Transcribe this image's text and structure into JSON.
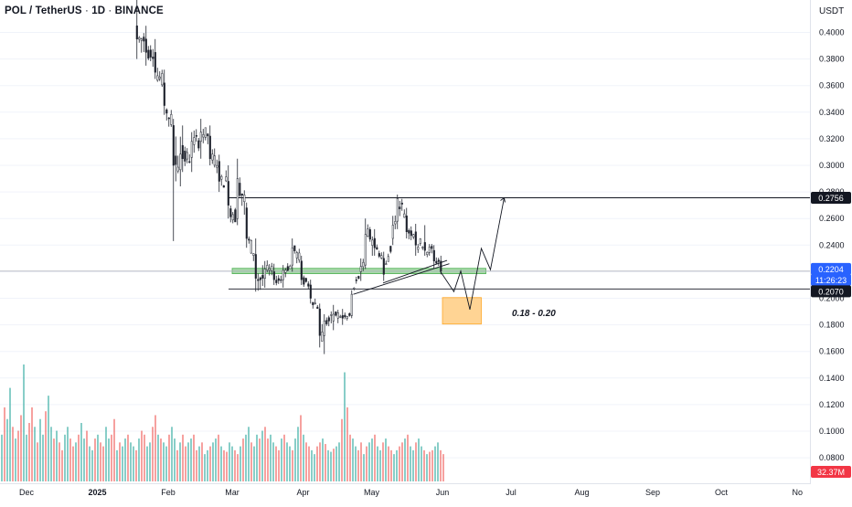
{
  "header": {
    "symbol": "POL / TetherUS",
    "interval": "1D",
    "exchange": "BINANCE",
    "separator": " · "
  },
  "axis": {
    "unit": "USDT",
    "price_ticks": [
      "0.4000",
      "0.3800",
      "0.3600",
      "0.3400",
      "0.3200",
      "0.3000",
      "0.2800",
      "0.2600",
      "0.2400",
      "0.2200",
      "0.2000",
      "0.1800",
      "0.1600",
      "0.1400",
      "0.1200",
      "0.1000",
      "0.0800"
    ],
    "date_ticks": [
      {
        "label": "Dec",
        "bold": false
      },
      {
        "label": "2025",
        "bold": true
      },
      {
        "label": "Feb",
        "bold": false
      },
      {
        "label": "Mar",
        "bold": false
      },
      {
        "label": "Apr",
        "bold": false
      },
      {
        "label": "May",
        "bold": false
      },
      {
        "label": "Jun",
        "bold": false
      },
      {
        "label": "Jul",
        "bold": false
      },
      {
        "label": "Aug",
        "bold": false
      },
      {
        "label": "Sep",
        "bold": false
      },
      {
        "label": "Oct",
        "bold": false
      },
      {
        "label": "No",
        "bold": false
      }
    ]
  },
  "badges": {
    "resistance": {
      "label": "0.2756",
      "bg": "#131722",
      "fg": "#ffffff"
    },
    "current_price": {
      "label": "0.2204",
      "bg": "#2962ff",
      "fg": "#ffffff"
    },
    "countdown": {
      "label": "11:26:23",
      "bg": "#2962ff",
      "fg": "#ffffff"
    },
    "support": {
      "label": "0.2070",
      "bg": "#131722",
      "fg": "#ffffff"
    },
    "volume": {
      "label": "32.37M",
      "bg": "#f23645",
      "fg": "#ffffff"
    }
  },
  "annotation": {
    "target_zone_label": "0.18 - 0.20"
  },
  "colors": {
    "up": "#26a69a",
    "down": "#ef5350",
    "candle_body": "#1e222d",
    "zone_green": "#81c784",
    "zone_orange": "#ffb74d",
    "grid": "#f0f3fa"
  },
  "chart_data": {
    "type": "candlestick",
    "title": "POL / TetherUS · 1D · BINANCE",
    "y_unit": "USDT",
    "ylim": [
      0.072,
      0.412
    ],
    "x_range": [
      "2024-11-20",
      "2025-11-02"
    ],
    "grid": true,
    "ohlc_sample": [
      {
        "date": "2025-01-18",
        "o": 0.405,
        "h": 0.43,
        "l": 0.38,
        "c": 0.395
      },
      {
        "date": "2025-01-22",
        "o": 0.395,
        "h": 0.405,
        "l": 0.375,
        "c": 0.385
      },
      {
        "date": "2025-01-26",
        "o": 0.385,
        "h": 0.395,
        "l": 0.365,
        "c": 0.37
      },
      {
        "date": "2025-01-30",
        "o": 0.362,
        "h": 0.372,
        "l": 0.338,
        "c": 0.345
      },
      {
        "date": "2025-02-03",
        "o": 0.33,
        "h": 0.335,
        "l": 0.243,
        "c": 0.3
      },
      {
        "date": "2025-02-07",
        "o": 0.315,
        "h": 0.33,
        "l": 0.295,
        "c": 0.305
      },
      {
        "date": "2025-02-11",
        "o": 0.306,
        "h": 0.325,
        "l": 0.295,
        "c": 0.318
      },
      {
        "date": "2025-02-15",
        "o": 0.318,
        "h": 0.335,
        "l": 0.305,
        "c": 0.325
      },
      {
        "date": "2025-02-19",
        "o": 0.322,
        "h": 0.33,
        "l": 0.3,
        "c": 0.305
      },
      {
        "date": "2025-02-23",
        "o": 0.303,
        "h": 0.308,
        "l": 0.28,
        "c": 0.288
      },
      {
        "date": "2025-02-27",
        "o": 0.288,
        "h": 0.3,
        "l": 0.26,
        "c": 0.27
      },
      {
        "date": "2025-03-03",
        "o": 0.26,
        "h": 0.305,
        "l": 0.255,
        "c": 0.29
      },
      {
        "date": "2025-03-07",
        "o": 0.268,
        "h": 0.272,
        "l": 0.238,
        "c": 0.245
      },
      {
        "date": "2025-03-11",
        "o": 0.233,
        "h": 0.245,
        "l": 0.205,
        "c": 0.215
      },
      {
        "date": "2025-03-15",
        "o": 0.215,
        "h": 0.228,
        "l": 0.208,
        "c": 0.222
      },
      {
        "date": "2025-03-19",
        "o": 0.22,
        "h": 0.226,
        "l": 0.21,
        "c": 0.214
      },
      {
        "date": "2025-03-23",
        "o": 0.214,
        "h": 0.225,
        "l": 0.208,
        "c": 0.221
      },
      {
        "date": "2025-03-27",
        "o": 0.225,
        "h": 0.245,
        "l": 0.22,
        "c": 0.238
      },
      {
        "date": "2025-03-31",
        "o": 0.228,
        "h": 0.232,
        "l": 0.21,
        "c": 0.214
      },
      {
        "date": "2025-04-04",
        "o": 0.21,
        "h": 0.214,
        "l": 0.196,
        "c": 0.2
      },
      {
        "date": "2025-04-08",
        "o": 0.192,
        "h": 0.196,
        "l": 0.163,
        "c": 0.172
      },
      {
        "date": "2025-04-10",
        "o": 0.172,
        "h": 0.188,
        "l": 0.158,
        "c": 0.183
      },
      {
        "date": "2025-04-14",
        "o": 0.183,
        "h": 0.195,
        "l": 0.176,
        "c": 0.188
      },
      {
        "date": "2025-04-18",
        "o": 0.187,
        "h": 0.192,
        "l": 0.18,
        "c": 0.185
      },
      {
        "date": "2025-04-22",
        "o": 0.187,
        "h": 0.206,
        "l": 0.185,
        "c": 0.203
      },
      {
        "date": "2025-04-26",
        "o": 0.22,
        "h": 0.23,
        "l": 0.213,
        "c": 0.224
      },
      {
        "date": "2025-04-28",
        "o": 0.225,
        "h": 0.26,
        "l": 0.222,
        "c": 0.248
      },
      {
        "date": "2025-05-02",
        "o": 0.245,
        "h": 0.252,
        "l": 0.232,
        "c": 0.238
      },
      {
        "date": "2025-05-06",
        "o": 0.23,
        "h": 0.235,
        "l": 0.213,
        "c": 0.218
      },
      {
        "date": "2025-05-10",
        "o": 0.245,
        "h": 0.262,
        "l": 0.24,
        "c": 0.255
      },
      {
        "date": "2025-05-12",
        "o": 0.258,
        "h": 0.278,
        "l": 0.252,
        "c": 0.275
      },
      {
        "date": "2025-05-16",
        "o": 0.262,
        "h": 0.268,
        "l": 0.245,
        "c": 0.25
      },
      {
        "date": "2025-05-20",
        "o": 0.25,
        "h": 0.256,
        "l": 0.232,
        "c": 0.24
      },
      {
        "date": "2025-05-24",
        "o": 0.242,
        "h": 0.255,
        "l": 0.232,
        "c": 0.236
      },
      {
        "date": "2025-05-28",
        "o": 0.236,
        "h": 0.24,
        "l": 0.222,
        "c": 0.228
      },
      {
        "date": "2025-05-31",
        "o": 0.228,
        "h": 0.232,
        "l": 0.218,
        "c": 0.2204
      }
    ],
    "levels": [
      {
        "name": "resistance",
        "value": 0.2756
      },
      {
        "name": "current",
        "value": 0.2204
      },
      {
        "name": "support",
        "value": 0.207
      }
    ],
    "zones": [
      {
        "name": "green",
        "from": 0.2185,
        "to": 0.2225,
        "x_from": "2025-03-01",
        "x_to": "2025-06-20"
      },
      {
        "name": "orange",
        "from": 0.1806,
        "to": 0.2005,
        "x_from": "2025-06-01",
        "x_to": "2025-06-18"
      }
    ],
    "projection": [
      {
        "date": "2025-05-31",
        "v": 0.2204
      },
      {
        "date": "2025-06-06",
        "v": 0.205
      },
      {
        "date": "2025-06-09",
        "v": 0.2205
      },
      {
        "date": "2025-06-13",
        "v": 0.1915
      },
      {
        "date": "2025-06-18",
        "v": 0.2375
      },
      {
        "date": "2025-06-22",
        "v": 0.2215
      },
      {
        "date": "2025-06-28",
        "v": 0.2756
      }
    ],
    "trend_lines": [
      {
        "from": {
          "date": "2025-04-23",
          "v": 0.203
        },
        "to": {
          "date": "2025-06-04",
          "v": 0.226
        }
      },
      {
        "from": {
          "date": "2025-05-06",
          "v": 0.2115
        },
        "to": {
          "date": "2025-06-03",
          "v": 0.2285
        }
      }
    ],
    "volume": {
      "unit": "M",
      "last": 32.37,
      "values": [
        60,
        95,
        80,
        120,
        70,
        55,
        65,
        85,
        150,
        60,
        75,
        95,
        70,
        50,
        80,
        60,
        90,
        110,
        70,
        55,
        65,
        50,
        40,
        60,
        70,
        55,
        45,
        50,
        60,
        75,
        55,
        65,
        45,
        40,
        55,
        60,
        50,
        45,
        70,
        55,
        60,
        80,
        40,
        50,
        45,
        55,
        60,
        50,
        45,
        40,
        55,
        65,
        60,
        45,
        50,
        70,
        85,
        60,
        55,
        50,
        45,
        60,
        70,
        55,
        40,
        50,
        60,
        45,
        50,
        55,
        60,
        40,
        45,
        50,
        35,
        40,
        45,
        50,
        55,
        60,
        45,
        40,
        38,
        50,
        45,
        40,
        35,
        45,
        55,
        60,
        70,
        50,
        45,
        60,
        55,
        65,
        70,
        55,
        60,
        50,
        45,
        40,
        55,
        60,
        50,
        45,
        40,
        55,
        70,
        85,
        60,
        50,
        45,
        40,
        35,
        45,
        50,
        55,
        48,
        40,
        38,
        42,
        45,
        50,
        80,
        140,
        95,
        60,
        55,
        45,
        40,
        50,
        35,
        45,
        50,
        55,
        60,
        45,
        40,
        50,
        55,
        45,
        40,
        35,
        40,
        45,
        50,
        55,
        60,
        45,
        40,
        50,
        55,
        45,
        40,
        35,
        38,
        40,
        45,
        50,
        40,
        35
      ]
    }
  }
}
